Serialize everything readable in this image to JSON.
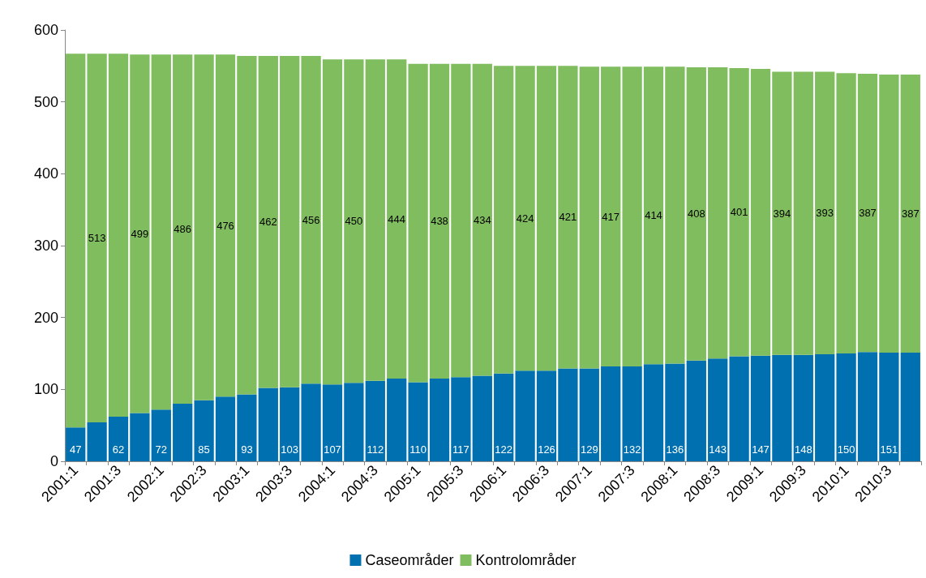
{
  "chart_data": {
    "type": "bar",
    "stacked": true,
    "categories": [
      "2001:1",
      null,
      "2001:3",
      null,
      "2002:1",
      null,
      "2002:3",
      null,
      "2003:1",
      null,
      "2003:3",
      null,
      "2004:1",
      null,
      "2004:3",
      null,
      "2005:1",
      null,
      "2005:3",
      null,
      "2006:1",
      null,
      "2006:3",
      null,
      "2007:1",
      null,
      "2007:3",
      null,
      "2008:1",
      null,
      "2008:3",
      null,
      "2009:1",
      null,
      "2009:3",
      null,
      "2010:1",
      null,
      "2010:3",
      null
    ],
    "series": [
      {
        "name": "Caseområder",
        "color": "#0070b0",
        "values": [
          47,
          54,
          62,
          67,
          72,
          80,
          85,
          90,
          93,
          102,
          103,
          108,
          107,
          109,
          112,
          115,
          110,
          115,
          117,
          119,
          122,
          126,
          126,
          129,
          129,
          132,
          132,
          135,
          136,
          140,
          143,
          146,
          147,
          148,
          148,
          149,
          150,
          152,
          151,
          151
        ],
        "value_labels": [
          "47",
          null,
          "62",
          null,
          "72",
          null,
          "85",
          null,
          "93",
          null,
          "103",
          null,
          "107",
          null,
          "112",
          null,
          "110",
          null,
          "117",
          null,
          "122",
          null,
          "126",
          null,
          "129",
          null,
          "132",
          null,
          "136",
          null,
          "143",
          null,
          "147",
          null,
          "148",
          null,
          "150",
          null,
          "151",
          null
        ]
      },
      {
        "name": "Kontrolområder",
        "color": "#80bd5f",
        "values": [
          520,
          513,
          505,
          499,
          494,
          486,
          481,
          476,
          471,
          462,
          461,
          456,
          452,
          450,
          447,
          444,
          443,
          438,
          436,
          434,
          428,
          424,
          424,
          421,
          420,
          417,
          417,
          414,
          413,
          408,
          405,
          401,
          399,
          394,
          394,
          393,
          390,
          387,
          387,
          387
        ],
        "value_labels": [
          null,
          "513",
          null,
          "499",
          null,
          "486",
          null,
          "476",
          null,
          "462",
          null,
          "456",
          null,
          "450",
          null,
          "444",
          null,
          "438",
          null,
          "434",
          null,
          "424",
          null,
          "421",
          null,
          "417",
          null,
          "414",
          null,
          "408",
          null,
          "401",
          null,
          "394",
          null,
          "393",
          null,
          "387",
          null,
          "387"
        ]
      }
    ],
    "ylim": [
      0,
      600
    ],
    "yticks": [
      0,
      100,
      200,
      300,
      400,
      500,
      600
    ],
    "grid": false,
    "legend": "bottom"
  }
}
